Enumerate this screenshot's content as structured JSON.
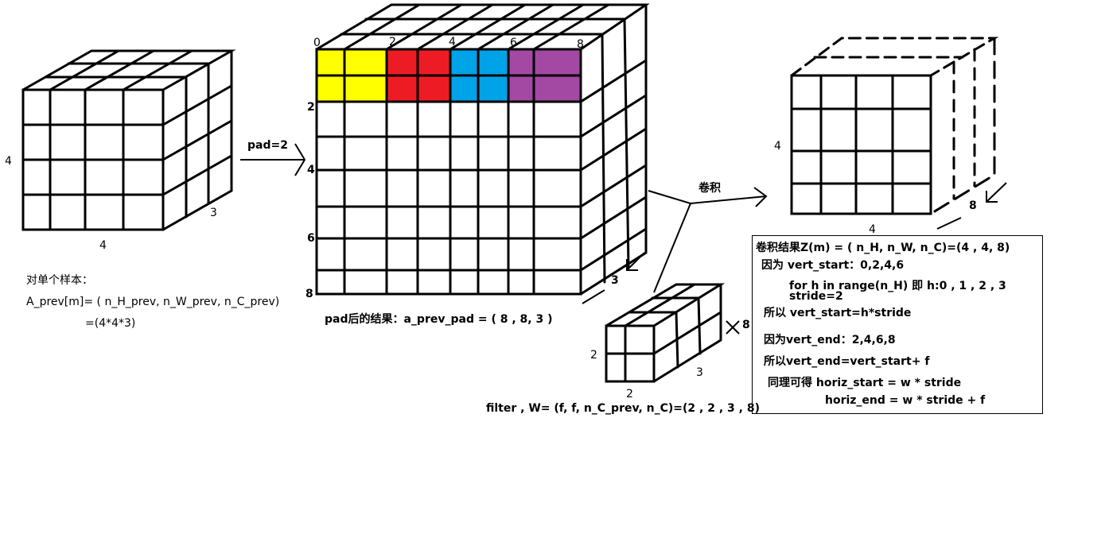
{
  "left_cube": {
    "height_label": "4",
    "width_label": "4",
    "depth_label": "3"
  },
  "left_caption": {
    "line1": "对单个样本：",
    "line2": "A_prev[m]= ( n_H_prev, n_W_prev, n_C_prev)",
    "line3": "=(4*4*3)"
  },
  "pad_arrow": {
    "label": "pad=2"
  },
  "padded_cube": {
    "top_ticks": [
      "0",
      "2",
      "4",
      "6",
      "8"
    ],
    "side_ticks": [
      "2",
      "4",
      "6",
      "8"
    ],
    "depth_label": "3",
    "caption": "pad后的结果：a_prev_pad = ( 8 , 8, 3 )",
    "stripe_colors": [
      "#ffff00",
      "#ed1c24",
      "#00a2e8",
      "#a349a4"
    ]
  },
  "filter": {
    "height_label": "2",
    "width_label": "2",
    "depth_label": "3",
    "count_label": "8",
    "caption": "filter , W= (f, f, n_C_prev, n_C)=(2 , 2 , 3 , 8)"
  },
  "conv_arrow": {
    "label": "卷积"
  },
  "result_cube": {
    "height_label": "4",
    "width_label": "4",
    "depth_label": "8"
  },
  "notes": {
    "line1": "卷积结果Z(m) = ( n_H, n_W, n_C)=(4 , 4, 8)",
    "line2": "因为 vert_start：0,2,4,6",
    "line3": "for h in range(n_H) 即 h:0 , 1 , 2 , 3",
    "line4": "stride=2",
    "line5": "所以 vert_start=h*stride",
    "line6": "因为vert_end：2,4,6,8",
    "line7": "所以vert_end=vert_start+ f",
    "line8": "同理可得  horiz_start = w * stride",
    "line9": "horiz_end =  w * stride + f"
  }
}
